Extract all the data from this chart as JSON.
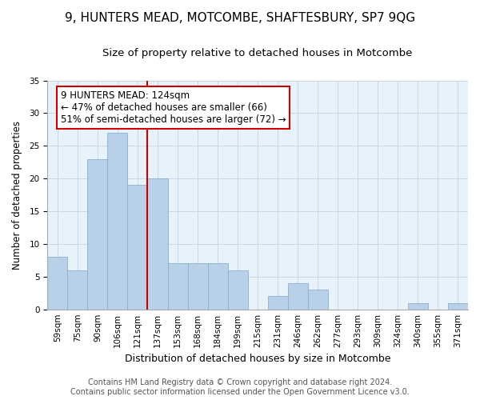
{
  "title": "9, HUNTERS MEAD, MOTCOMBE, SHAFTESBURY, SP7 9QG",
  "subtitle": "Size of property relative to detached houses in Motcombe",
  "xlabel": "Distribution of detached houses by size in Motcombe",
  "ylabel": "Number of detached properties",
  "bin_labels": [
    "59sqm",
    "75sqm",
    "90sqm",
    "106sqm",
    "121sqm",
    "137sqm",
    "153sqm",
    "168sqm",
    "184sqm",
    "199sqm",
    "215sqm",
    "231sqm",
    "246sqm",
    "262sqm",
    "277sqm",
    "293sqm",
    "309sqm",
    "324sqm",
    "340sqm",
    "355sqm",
    "371sqm"
  ],
  "counts": [
    8,
    6,
    23,
    27,
    19,
    20,
    7,
    7,
    7,
    6,
    0,
    2,
    4,
    3,
    0,
    0,
    0,
    0,
    1,
    0,
    1
  ],
  "bar_color": "#b8d0e8",
  "bar_edgecolor": "#8ab0d0",
  "vline_color": "#cc0000",
  "vline_bin_index": 4,
  "annotation_text": "9 HUNTERS MEAD: 124sqm\n← 47% of detached houses are smaller (66)\n51% of semi-detached houses are larger (72) →",
  "annotation_box_edgecolor": "#cc0000",
  "annotation_box_facecolor": "#ffffff",
  "ylim": [
    0,
    35
  ],
  "yticks": [
    0,
    5,
    10,
    15,
    20,
    25,
    30,
    35
  ],
  "footer": "Contains HM Land Registry data © Crown copyright and database right 2024.\nContains public sector information licensed under the Open Government Licence v3.0.",
  "title_fontsize": 11,
  "subtitle_fontsize": 9.5,
  "xlabel_fontsize": 9,
  "ylabel_fontsize": 8.5,
  "tick_fontsize": 7.5,
  "annotation_fontsize": 8.5,
  "footer_fontsize": 7
}
